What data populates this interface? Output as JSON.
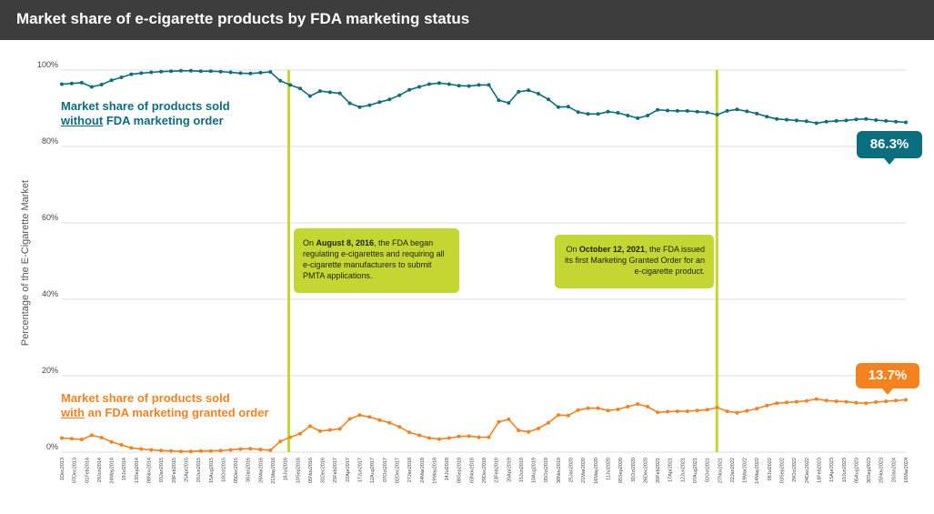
{
  "title": "Market share of e-cigarette products by FDA marketing status",
  "colors": {
    "teal": "#0b6e7e",
    "orange": "#f5821f",
    "marker": "#c3d632",
    "grid": "#dddddd",
    "title_bg": "#3d3d3d"
  },
  "labels": {
    "without_a": "Market share of products sold",
    "without_b1": "without",
    "without_b2": " FDA marketing order",
    "with_a": "Market share of products sold",
    "with_b1": "with",
    "with_b2": " an FDA marketing granted order"
  },
  "callouts": {
    "without": "86.3%",
    "with": "13.7%"
  },
  "annotations": {
    "a1_pre": "On ",
    "a1_bold": "August  8, 2016",
    "a1_post": ", the FDA began regulating e-cigarettes and requiring all e-cigarette manufacturers to submit PMTA applications.",
    "a2_pre": "On ",
    "a2_bold": "October 12, 2021",
    "a2_post": ", the FDA issued its first Marketing Granted Order for an e-cigarette product."
  },
  "chart_data": {
    "type": "line",
    "title": "Market share of e-cigarette products by FDA marketing status",
    "ylabel": "Percentage of the E-Cigarette Market",
    "ylim": [
      0,
      100
    ],
    "yticks": [
      "0%",
      "20%",
      "40%",
      "60%",
      "80%",
      "100%"
    ],
    "grid": true,
    "xlabel": "",
    "x_tick_labels": [
      "1Dec2013",
      "07Dec2013",
      "01Feb2014",
      "29Jun2014",
      "24May2014",
      "19Jul2014",
      "13Sep2014",
      "08Nov2014",
      "03Jan2015",
      "28Feb2015",
      "25Apr2015",
      "20Jun2015",
      "15Aug2015",
      "10Oct2015",
      "05Dec2015",
      "30Jan2016",
      "26Mar2016",
      "21May2016",
      "16Jul2016",
      "10Sep2016",
      "05Nov2016",
      "31Dec2016",
      "25Feb2017",
      "22Apr2017",
      "17Jun2017",
      "12Aug2017",
      "07Oct2017",
      "02Dec2017",
      "27Jan2018",
      "24Mar2018",
      "19May2018",
      "14Jul2018",
      "08Sep2018",
      "03Nov2018",
      "29Dec2018",
      "23Feb2019",
      "20Apr2019",
      "15Jun2019",
      "10Aug2019",
      "05Oct2019",
      "30Nov2019",
      "25Jan2020",
      "21Mar2020",
      "16May2020",
      "11Jul2020",
      "05Sep2020",
      "31Oct2020",
      "26Dec2020",
      "20Feb2021",
      "17Apr2021",
      "12Jun2021",
      "07Aug2021",
      "02Oct2021",
      "27Nov2021",
      "22Jan2022",
      "19Mar2022",
      "14May2022",
      "09Jul2022",
      "03Sep2022",
      "29Oct2022",
      "24Dec2022",
      "18Feb2023",
      "15Apr2023",
      "10Jun2023",
      "05Aug2023",
      "30Sep2023",
      "25Nov2023",
      "20Jan2024",
      "16Mar2024"
    ],
    "series": [
      {
        "name": "Market share of products sold without FDA marketing order",
        "color": "#0b6e7e",
        "values": [
          96.3,
          96.5,
          96.7,
          95.6,
          96.2,
          97.3,
          98.1,
          98.9,
          99.2,
          99.4,
          99.6,
          99.7,
          99.8,
          99.8,
          99.7,
          99.7,
          99.6,
          99.4,
          99.2,
          99.1,
          99.3,
          99.5,
          97.2,
          96.1,
          95.2,
          93.2,
          94.5,
          94.2,
          93.9,
          91.3,
          90.3,
          90.8,
          91.6,
          92.3,
          93.4,
          94.8,
          95.6,
          96.3,
          96.6,
          96.3,
          95.9,
          95.8,
          96.1,
          96.1,
          92.1,
          91.4,
          94.3,
          94.7,
          93.8,
          92.3,
          90.3,
          90.4,
          89.0,
          88.5,
          88.5,
          89.1,
          88.8,
          88.1,
          87.4,
          88.1,
          89.6,
          89.4,
          89.3,
          89.3,
          89.1,
          88.9,
          88.3,
          89.3,
          89.7,
          89.2,
          88.6,
          87.8,
          87.2,
          87.0,
          86.8,
          86.6,
          86.1,
          86.5,
          86.7,
          86.8,
          87.1,
          87.2,
          86.9,
          86.7,
          86.5,
          86.3
        ]
      },
      {
        "name": "Market share of products sold with an FDA marketing granted order",
        "color": "#f5821f",
        "values": [
          3.7,
          3.5,
          3.3,
          4.4,
          3.8,
          2.7,
          1.9,
          1.1,
          0.8,
          0.6,
          0.4,
          0.3,
          0.2,
          0.2,
          0.3,
          0.3,
          0.4,
          0.6,
          0.8,
          0.9,
          0.7,
          0.5,
          2.8,
          3.9,
          4.8,
          6.8,
          5.5,
          5.8,
          6.1,
          8.7,
          9.7,
          9.2,
          8.4,
          7.7,
          6.6,
          5.2,
          4.4,
          3.7,
          3.4,
          3.7,
          4.1,
          4.2,
          3.9,
          3.9,
          7.9,
          8.6,
          5.7,
          5.3,
          6.2,
          7.7,
          9.7,
          9.6,
          11.0,
          11.5,
          11.5,
          10.9,
          11.2,
          11.9,
          12.6,
          11.9,
          10.4,
          10.6,
          10.7,
          10.7,
          10.9,
          11.1,
          11.7,
          10.7,
          10.3,
          10.8,
          11.4,
          12.2,
          12.8,
          13.0,
          13.2,
          13.4,
          13.9,
          13.5,
          13.3,
          13.2,
          12.9,
          12.8,
          13.1,
          13.3,
          13.5,
          13.7
        ]
      }
    ],
    "events": [
      {
        "date": "August 8, 2016"
      },
      {
        "date": "October 12, 2021"
      }
    ],
    "end_labels": [
      "86.3%",
      "13.7%"
    ]
  }
}
